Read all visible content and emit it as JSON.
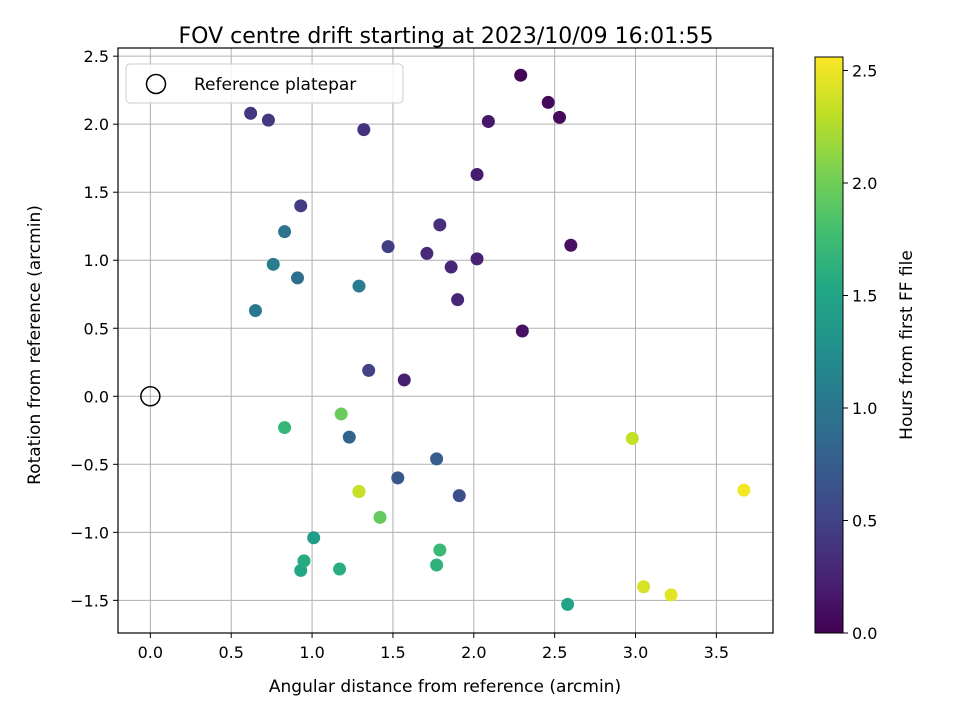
{
  "chart_data": {
    "type": "scatter",
    "title": "FOV centre drift starting at 2023/10/09 16:01:55",
    "xlabel": "Angular distance from reference (arcmin)",
    "ylabel": "Rotation from reference (arcmin)",
    "xlim": [
      -0.2,
      3.85
    ],
    "ylim": [
      -1.74,
      2.56
    ],
    "xticks": [
      "0.0",
      "0.5",
      "1.0",
      "1.5",
      "2.0",
      "2.5",
      "3.0",
      "3.5"
    ],
    "yticks": [
      "−1.5",
      "−1.0",
      "−0.5",
      "0.0",
      "0.5",
      "1.0",
      "1.5",
      "2.0",
      "2.5"
    ],
    "grid": true,
    "legend": {
      "label": "Reference platepar",
      "placement": "top-left"
    },
    "reference_point": {
      "x": 0.0,
      "y": 0.0
    },
    "colorbar": {
      "label": "Hours from first FF file",
      "range": [
        0.0,
        2.56
      ],
      "ticks": [
        "0.0",
        "0.5",
        "1.0",
        "1.5",
        "2.0",
        "2.5"
      ],
      "colormap": "viridis"
    },
    "points": [
      {
        "x": 2.29,
        "y": 2.36,
        "h": 0.02
      },
      {
        "x": 2.46,
        "y": 2.16,
        "h": 0.05
      },
      {
        "x": 2.53,
        "y": 2.05,
        "h": 0.08
      },
      {
        "x": 2.6,
        "y": 1.11,
        "h": 0.1
      },
      {
        "x": 2.3,
        "y": 0.48,
        "h": 0.12
      },
      {
        "x": 2.09,
        "y": 2.02,
        "h": 0.16
      },
      {
        "x": 2.02,
        "y": 1.63,
        "h": 0.2
      },
      {
        "x": 1.57,
        "y": 0.12,
        "h": 0.22
      },
      {
        "x": 2.02,
        "y": 1.01,
        "h": 0.25
      },
      {
        "x": 1.9,
        "y": 0.71,
        "h": 0.26
      },
      {
        "x": 1.86,
        "y": 0.95,
        "h": 0.28
      },
      {
        "x": 1.71,
        "y": 1.05,
        "h": 0.3
      },
      {
        "x": 1.79,
        "y": 1.26,
        "h": 0.34
      },
      {
        "x": 1.32,
        "y": 1.96,
        "h": 0.37
      },
      {
        "x": 0.62,
        "y": 2.08,
        "h": 0.4
      },
      {
        "x": 0.73,
        "y": 2.03,
        "h": 0.42
      },
      {
        "x": 0.93,
        "y": 1.4,
        "h": 0.44
      },
      {
        "x": 1.47,
        "y": 1.1,
        "h": 0.46
      },
      {
        "x": 1.35,
        "y": 0.19,
        "h": 0.5
      },
      {
        "x": 1.91,
        "y": -0.73,
        "h": 0.62
      },
      {
        "x": 1.53,
        "y": -0.6,
        "h": 0.7
      },
      {
        "x": 1.77,
        "y": -0.46,
        "h": 0.76
      },
      {
        "x": 1.23,
        "y": -0.3,
        "h": 0.82
      },
      {
        "x": 0.91,
        "y": 0.87,
        "h": 0.92
      },
      {
        "x": 0.83,
        "y": 1.21,
        "h": 0.96
      },
      {
        "x": 0.65,
        "y": 0.63,
        "h": 1.02
      },
      {
        "x": 1.29,
        "y": 0.81,
        "h": 1.05
      },
      {
        "x": 0.76,
        "y": 0.97,
        "h": 1.1
      },
      {
        "x": 1.01,
        "y": -1.04,
        "h": 1.4
      },
      {
        "x": 2.58,
        "y": -1.53,
        "h": 1.48
      },
      {
        "x": 0.93,
        "y": -1.28,
        "h": 1.52
      },
      {
        "x": 0.95,
        "y": -1.21,
        "h": 1.56
      },
      {
        "x": 1.17,
        "y": -1.27,
        "h": 1.6
      },
      {
        "x": 1.77,
        "y": -1.24,
        "h": 1.64
      },
      {
        "x": 0.83,
        "y": -0.23,
        "h": 1.68
      },
      {
        "x": 1.79,
        "y": -1.13,
        "h": 1.72
      },
      {
        "x": 1.42,
        "y": -0.89,
        "h": 1.95
      },
      {
        "x": 1.18,
        "y": -0.13,
        "h": 1.97
      },
      {
        "x": 1.29,
        "y": -0.7,
        "h": 2.0
      },
      {
        "x": 1.29,
        "y": -0.7,
        "h": 2.35
      },
      {
        "x": 2.98,
        "y": -0.31,
        "h": 2.33
      },
      {
        "x": 3.05,
        "y": -1.4,
        "h": 2.4
      },
      {
        "x": 3.22,
        "y": -1.46,
        "h": 2.45
      },
      {
        "x": 3.67,
        "y": -0.69,
        "h": 2.52
      }
    ]
  }
}
